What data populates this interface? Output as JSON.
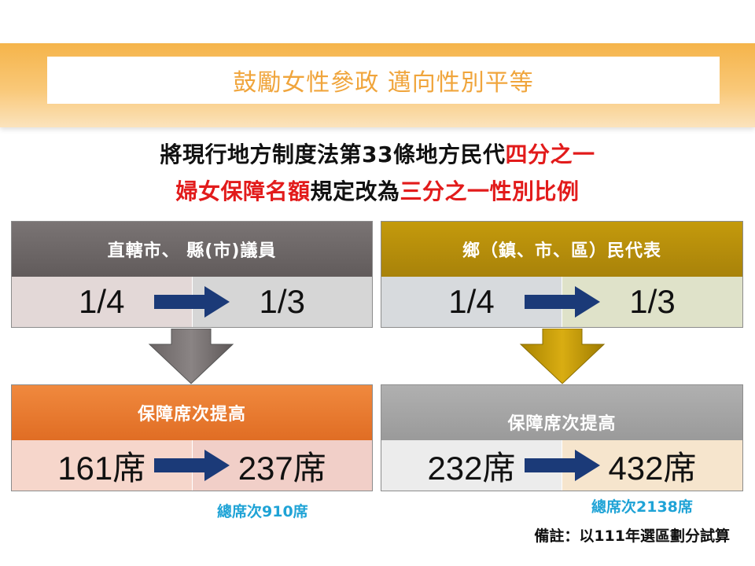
{
  "title": "鼓勵女性參政 邁向性別平等",
  "headline": {
    "line1_black": "將現行地方制度法第33條地方民代",
    "line1_red": "四分之一",
    "line2_red_a": "婦女保障名額",
    "line2_black": "規定改為",
    "line2_red_b": "三分之一性別比例"
  },
  "left": {
    "ratio_header": "直轄市、 縣(市)議員",
    "ratio_from": "1/4",
    "ratio_to": "1/3",
    "seats_header": "保障席次提高",
    "seats_from": "161席",
    "seats_to": "237席",
    "total": "總席次910席"
  },
  "right": {
    "ratio_header": "鄉（鎮、市、區）民代表",
    "ratio_from": "1/4",
    "ratio_to": "1/3",
    "seats_header": "保障席次提高",
    "seats_from": "232席",
    "seats_to": "432席",
    "total": "總席次2138席"
  },
  "note": "備註：以111年選區劃分試算",
  "colors": {
    "banner": "#f9c878",
    "title_text": "#f0a53c",
    "highlight_red": "#e21b1b",
    "left_ratio_header": "#6e6868",
    "right_ratio_header": "#b28b07",
    "left_seats_header": "#e97a30",
    "right_seats_header": "#a6a6a6",
    "arrow_navy": "#1b3a78",
    "total_text": "#1fa3d6"
  },
  "icons": {
    "row_arrow": "right-arrow-icon",
    "down_arrow": "down-arrow-icon"
  }
}
